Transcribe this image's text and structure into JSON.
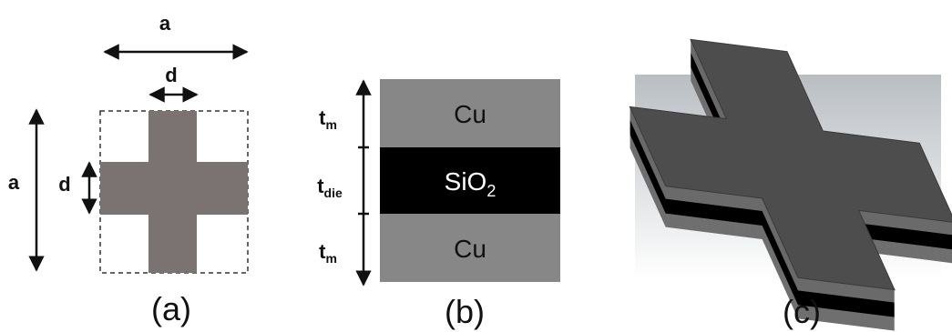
{
  "panel_a": {
    "dimension_labels": [
      "a",
      "d",
      "a",
      "d"
    ],
    "caption": "(a)"
  },
  "panel_b": {
    "layers": [
      {
        "material": {
          "base": "Cu",
          "sub": ""
        },
        "thickness": {
          "base": "t",
          "sub": "m"
        }
      },
      {
        "material": {
          "base": "SiO",
          "sub": "2"
        },
        "thickness": {
          "base": "t",
          "sub": "die"
        }
      },
      {
        "material": {
          "base": "Cu",
          "sub": ""
        },
        "thickness": {
          "base": "t",
          "sub": "m"
        }
      }
    ],
    "caption": "(b)"
  },
  "panel_c": {
    "caption": "(c)"
  }
}
